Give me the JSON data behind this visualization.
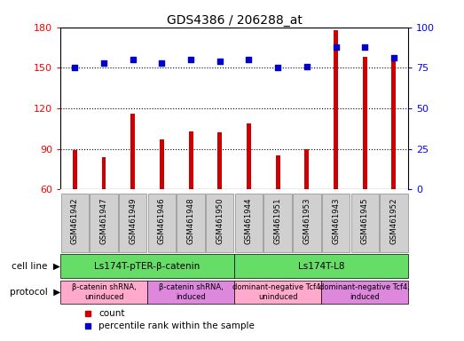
{
  "title": "GDS4386 / 206288_at",
  "samples": [
    "GSM461942",
    "GSM461947",
    "GSM461949",
    "GSM461946",
    "GSM461948",
    "GSM461950",
    "GSM461944",
    "GSM461951",
    "GSM461953",
    "GSM461943",
    "GSM461945",
    "GSM461952"
  ],
  "counts": [
    89,
    84,
    116,
    97,
    103,
    102,
    109,
    85,
    90,
    178,
    158,
    155
  ],
  "percentiles": [
    75,
    78,
    80,
    78,
    80,
    79,
    80,
    75,
    76,
    88,
    88,
    81
  ],
  "ylim_left": [
    60,
    180
  ],
  "ylim_right": [
    0,
    100
  ],
  "yticks_left": [
    60,
    90,
    120,
    150,
    180
  ],
  "yticks_right": [
    0,
    25,
    50,
    75,
    100
  ],
  "cell_line_groups": [
    {
      "label": "Ls174T-pTER-β-catenin",
      "start": 0,
      "end": 6,
      "color": "#66dd66"
    },
    {
      "label": "Ls174T-L8",
      "start": 6,
      "end": 12,
      "color": "#66dd66"
    }
  ],
  "protocol_groups": [
    {
      "label": "β-catenin shRNA,\nuninduced",
      "start": 0,
      "end": 3,
      "color": "#ffaacc"
    },
    {
      "label": "β-catenin shRNA,\ninduced",
      "start": 3,
      "end": 6,
      "color": "#dd88dd"
    },
    {
      "label": "dominant-negative Tcf4,\nuninduced",
      "start": 6,
      "end": 9,
      "color": "#ffaacc"
    },
    {
      "label": "dominant-negative Tcf4,\ninduced",
      "start": 9,
      "end": 12,
      "color": "#dd88dd"
    }
  ],
  "bar_color": "#cc0000",
  "dot_color": "#0000cc",
  "background_color": "#ffffff",
  "bar_width": 0.15,
  "legend_count_label": "count",
  "legend_pct_label": "percentile rank within the sample",
  "xticklabel_bg": "#d0d0d0"
}
